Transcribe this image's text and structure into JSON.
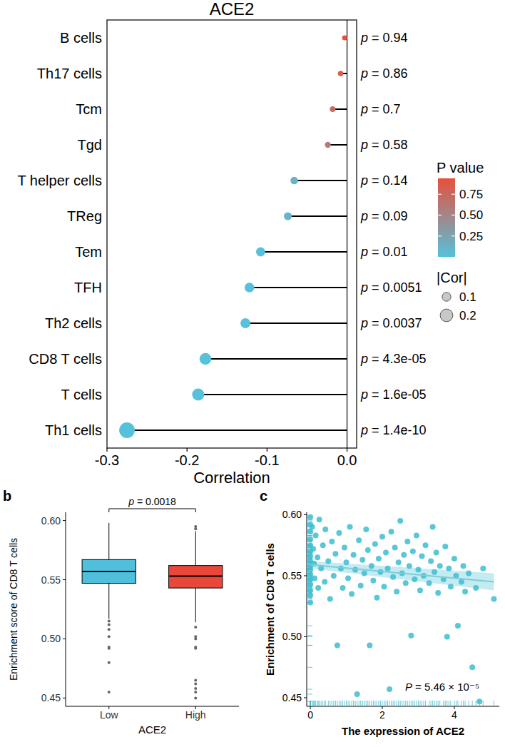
{
  "chart_data": [
    {
      "type": "lollipop",
      "orientation": "horizontal",
      "title": "ACE2",
      "x_label": "Correlation",
      "categories": [
        "B cells",
        "Th17 cells",
        "Tcm",
        "Tgd",
        "T helper cells",
        "TReg",
        "Tem",
        "TFH",
        "Th2 cells",
        "CD8 T cells",
        "T cells",
        "Th1 cells"
      ],
      "values": [
        -0.003,
        -0.008,
        -0.018,
        -0.024,
        -0.066,
        -0.074,
        -0.108,
        -0.122,
        -0.127,
        -0.177,
        -0.186,
        -0.275
      ],
      "p_values": [
        0.94,
        0.86,
        0.7,
        0.58,
        0.14,
        0.09,
        0.01,
        0.0051,
        0.0037,
        4.3e-05,
        1.6e-05,
        1.4e-10
      ],
      "p_labels": [
        "p = 0.94",
        "p = 0.86",
        "p = 0.7",
        "p = 0.58",
        "p = 0.14",
        "p = 0.09",
        "p = 0.01",
        "p = 0.0051",
        "p = 0.0037",
        "p = 4.3e-05",
        "p = 1.6e-05",
        "p = 1.4e-10"
      ],
      "xlim": [
        -0.3,
        0.012
      ],
      "xticks": [
        -0.3,
        -0.2,
        -0.1,
        {
          "value": 0,
          "label": "0.0"
        }
      ],
      "color_title": "P value",
      "color_range": [
        0,
        0.94
      ],
      "color_ticks": [
        {
          "value": 0.25,
          "label": "0.25"
        },
        {
          "value": 0.5,
          "label": "0.50"
        },
        {
          "value": 0.75,
          "label": "0.75"
        }
      ],
      "size_title": "|Cor|",
      "size_ticks": [
        0.1,
        0.2
      ]
    },
    {
      "type": "box",
      "panel_label": "b",
      "x_label": "ACE2",
      "y_label": "Enrichment score of CD8 T cells",
      "categories": [
        "Low",
        "High"
      ],
      "colors": [
        "#4fbfdc",
        "#e8473a"
      ],
      "q1": [
        0.547,
        0.543
      ],
      "median": [
        0.557,
        0.553
      ],
      "q3": [
        0.567,
        0.562
      ],
      "whisker_low": [
        0.517,
        0.514
      ],
      "whisker_high": [
        0.598,
        0.591
      ],
      "outliers": [
        [
          0.515,
          0.512,
          0.508,
          0.502,
          0.493,
          0.492,
          0.48,
          0.455
        ],
        [
          0.595,
          0.593,
          0.51,
          0.502,
          0.5,
          0.493,
          0.492,
          0.465,
          0.462,
          0.458,
          0.455,
          0.45
        ]
      ],
      "ylim": [
        0.443,
        0.607
      ],
      "yticks": [
        {
          "value": 0.45,
          "label": "0.45"
        },
        {
          "value": 0.5,
          "label": "0.50"
        },
        {
          "value": 0.55,
          "label": "0.55"
        },
        {
          "value": 0.6,
          "label": "0.60"
        }
      ],
      "annotation": "p = 0.0018"
    },
    {
      "type": "scatter",
      "panel_label": "c",
      "x_label": "The expression of ACE2",
      "y_label": "Enrichment of CD8 T cells",
      "color": "#3dbdd0",
      "x": [
        0,
        0,
        0,
        0,
        0,
        0,
        0,
        0,
        0,
        0,
        0,
        0,
        0,
        0,
        0,
        0,
        0.05,
        0.08,
        0.1,
        0.12,
        0.15,
        0.2,
        0.22,
        0.25,
        0.3,
        0.35,
        0.4,
        0.42,
        0.5,
        0.55,
        0.6,
        0.65,
        0.7,
        0.75,
        0.8,
        0.85,
        0.9,
        0.95,
        1.0,
        1.05,
        1.1,
        1.15,
        1.2,
        1.25,
        1.3,
        1.35,
        1.4,
        1.45,
        1.5,
        1.55,
        1.6,
        1.65,
        1.7,
        1.75,
        1.8,
        1.85,
        1.9,
        1.95,
        2.0,
        2.05,
        2.1,
        2.15,
        2.2,
        2.25,
        2.3,
        2.35,
        2.4,
        2.45,
        2.5,
        2.55,
        2.6,
        2.65,
        2.7,
        2.75,
        2.8,
        2.85,
        2.9,
        2.95,
        3.0,
        3.05,
        3.1,
        3.15,
        3.2,
        3.3,
        3.35,
        3.4,
        3.45,
        3.5,
        3.55,
        3.6,
        3.7,
        3.75,
        3.8,
        3.85,
        3.9,
        4.0,
        4.05,
        4.1,
        4.2,
        4.25,
        4.3,
        4.4,
        4.5,
        4.6,
        4.7,
        4.8,
        5.1
      ],
      "y": [
        0.598,
        0.592,
        0.586,
        0.58,
        0.575,
        0.57,
        0.566,
        0.562,
        0.558,
        0.555,
        0.551,
        0.547,
        0.543,
        0.538,
        0.534,
        0.528,
        0.59,
        0.572,
        0.56,
        0.548,
        0.583,
        0.565,
        0.54,
        0.596,
        0.556,
        0.575,
        0.545,
        0.588,
        0.562,
        0.531,
        0.578,
        0.55,
        0.568,
        0.493,
        0.585,
        0.556,
        0.54,
        0.573,
        0.561,
        0.548,
        0.59,
        0.535,
        0.567,
        0.555,
        0.453,
        0.579,
        0.542,
        0.563,
        0.552,
        0.588,
        0.571,
        0.493,
        0.558,
        0.546,
        0.576,
        0.532,
        0.564,
        0.553,
        0.582,
        0.541,
        0.569,
        0.556,
        0.457,
        0.586,
        0.549,
        0.573,
        0.537,
        0.561,
        0.595,
        0.552,
        0.567,
        0.544,
        0.578,
        0.558,
        0.501,
        0.57,
        0.547,
        0.583,
        0.555,
        0.538,
        0.566,
        0.55,
        0.575,
        0.544,
        0.562,
        0.59,
        0.553,
        0.569,
        0.536,
        0.558,
        0.547,
        0.574,
        0.5,
        0.556,
        0.541,
        0.564,
        0.55,
        0.509,
        0.545,
        0.558,
        0.537,
        0.552,
        0.475,
        0.54,
        0.447,
        0.556,
        0.531
      ],
      "fit_x": [
        0,
        5.1
      ],
      "fit_y": [
        0.559,
        0.545
      ],
      "fit_lower": [
        0.556,
        0.538
      ],
      "fit_upper": [
        0.562,
        0.552
      ],
      "xlim": [
        -0.1,
        5.25
      ],
      "xticks": [
        0,
        2,
        4
      ],
      "ylim": [
        0.443,
        0.602
      ],
      "yticks": [
        {
          "value": 0.45,
          "label": "0.45"
        },
        {
          "value": 0.5,
          "label": "0.50"
        },
        {
          "value": 0.55,
          "label": "0.55"
        },
        {
          "value": 0.6,
          "label": "0.60"
        }
      ],
      "annotation": "P = 5.46 × 10⁻⁵"
    }
  ]
}
